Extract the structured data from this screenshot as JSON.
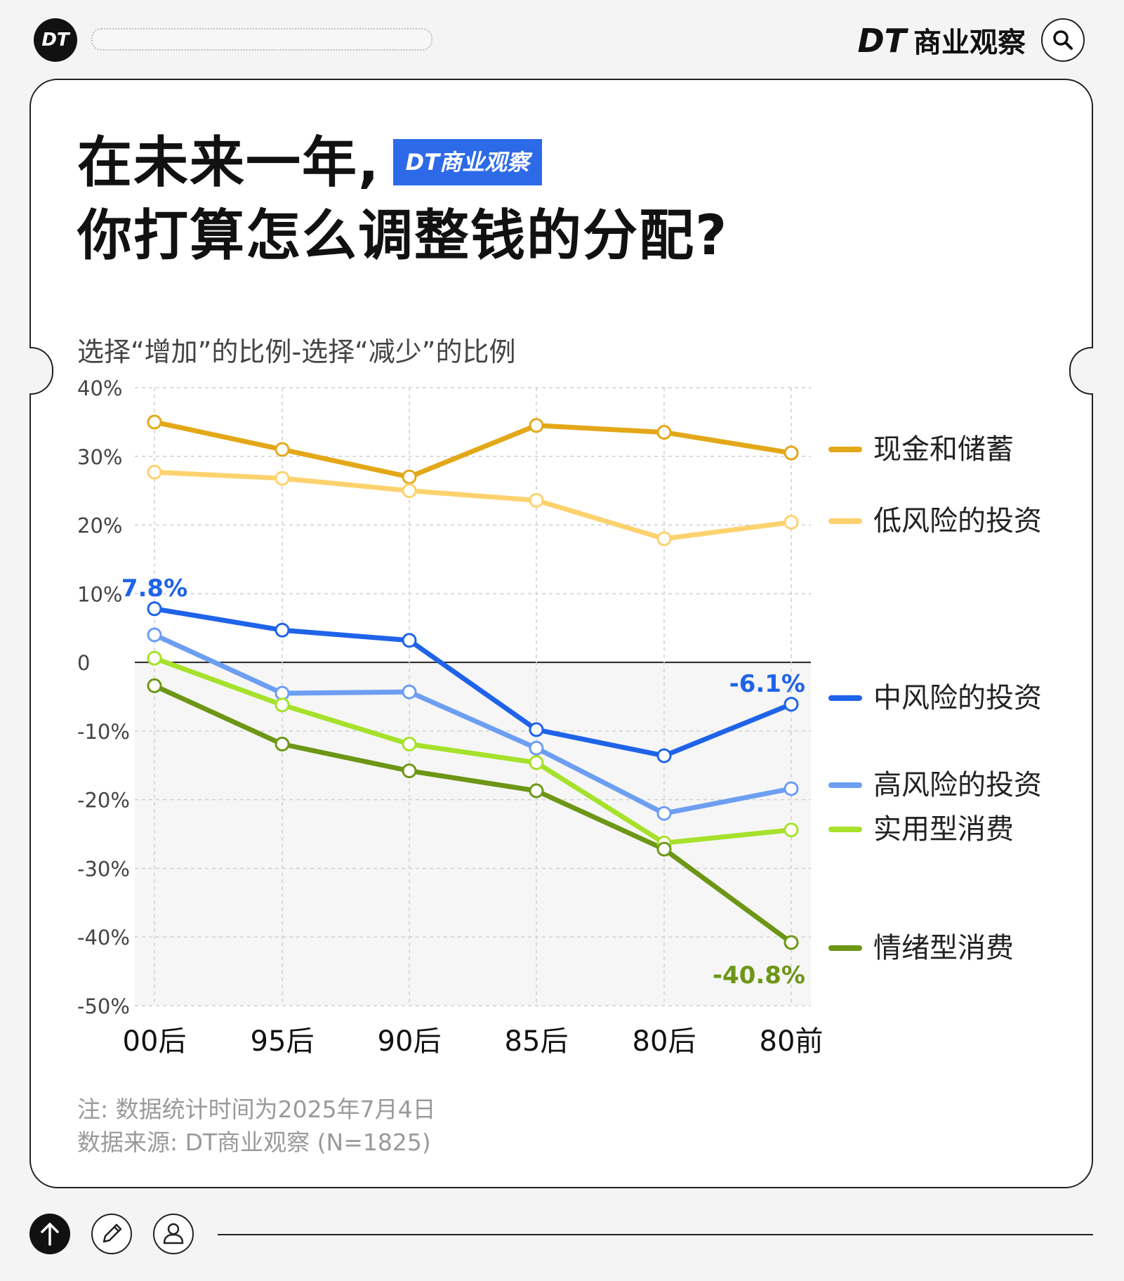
{
  "header": {
    "logo_text": "DT",
    "brand_dt": "DT",
    "brand_name": "商业观察"
  },
  "title": {
    "line1": "在未来一年,",
    "line2": "你打算怎么调整钱的分配?",
    "badge": "DT商业观察"
  },
  "chart_data": {
    "type": "line",
    "subtitle": "选择“增加”的比例-选择“减少”的比例",
    "categories": [
      "00后",
      "95后",
      "90后",
      "85后",
      "80后",
      "80前"
    ],
    "ylim": [
      -50,
      40
    ],
    "yticks": [
      "40%",
      "30%",
      "20%",
      "10%",
      "0",
      "-10%",
      "-20%",
      "-30%",
      "-40%",
      "-50%"
    ],
    "ytick_values": [
      40,
      30,
      20,
      10,
      0,
      -10,
      -20,
      -30,
      -40,
      -50
    ],
    "grid": true,
    "legend_position": "right",
    "series": [
      {
        "name": "现金和储蓄",
        "color": "#e3a818",
        "values": [
          35.0,
          31.0,
          27.0,
          34.5,
          33.5,
          30.5
        ]
      },
      {
        "name": "低风险的投资",
        "color": "#fdd26e",
        "values": [
          27.7,
          26.8,
          25.0,
          23.6,
          18.0,
          20.4
        ]
      },
      {
        "name": "中风险的投资",
        "color": "#1f63e8",
        "values": [
          7.8,
          4.7,
          3.2,
          -9.8,
          -13.6,
          -6.1
        ]
      },
      {
        "name": "高风险的投资",
        "color": "#6c9ef2",
        "values": [
          4.0,
          -4.5,
          -4.3,
          -12.5,
          -22.0,
          -18.4
        ]
      },
      {
        "name": "实用型消费",
        "color": "#a6e12b",
        "values": [
          0.6,
          -6.2,
          -11.9,
          -14.6,
          -26.3,
          -24.4
        ]
      },
      {
        "name": "情绪型消费",
        "color": "#6d9616",
        "values": [
          -3.4,
          -11.9,
          -15.8,
          -18.7,
          -27.2,
          -40.8
        ]
      }
    ],
    "annotations": [
      {
        "series": "中风险的投资",
        "index": 0,
        "text": "7.8%",
        "color": "#1f63e8"
      },
      {
        "series": "中风险的投资",
        "index": 5,
        "text": "-6.1%",
        "color": "#1f63e8"
      },
      {
        "series": "情绪型消费",
        "index": 5,
        "text": "-40.8%",
        "color": "#6d9616"
      }
    ]
  },
  "notes": {
    "note1": "注: 数据统计时间为2025年7月4日",
    "note2": "数据来源: DT商业观察 (N=1825)"
  }
}
